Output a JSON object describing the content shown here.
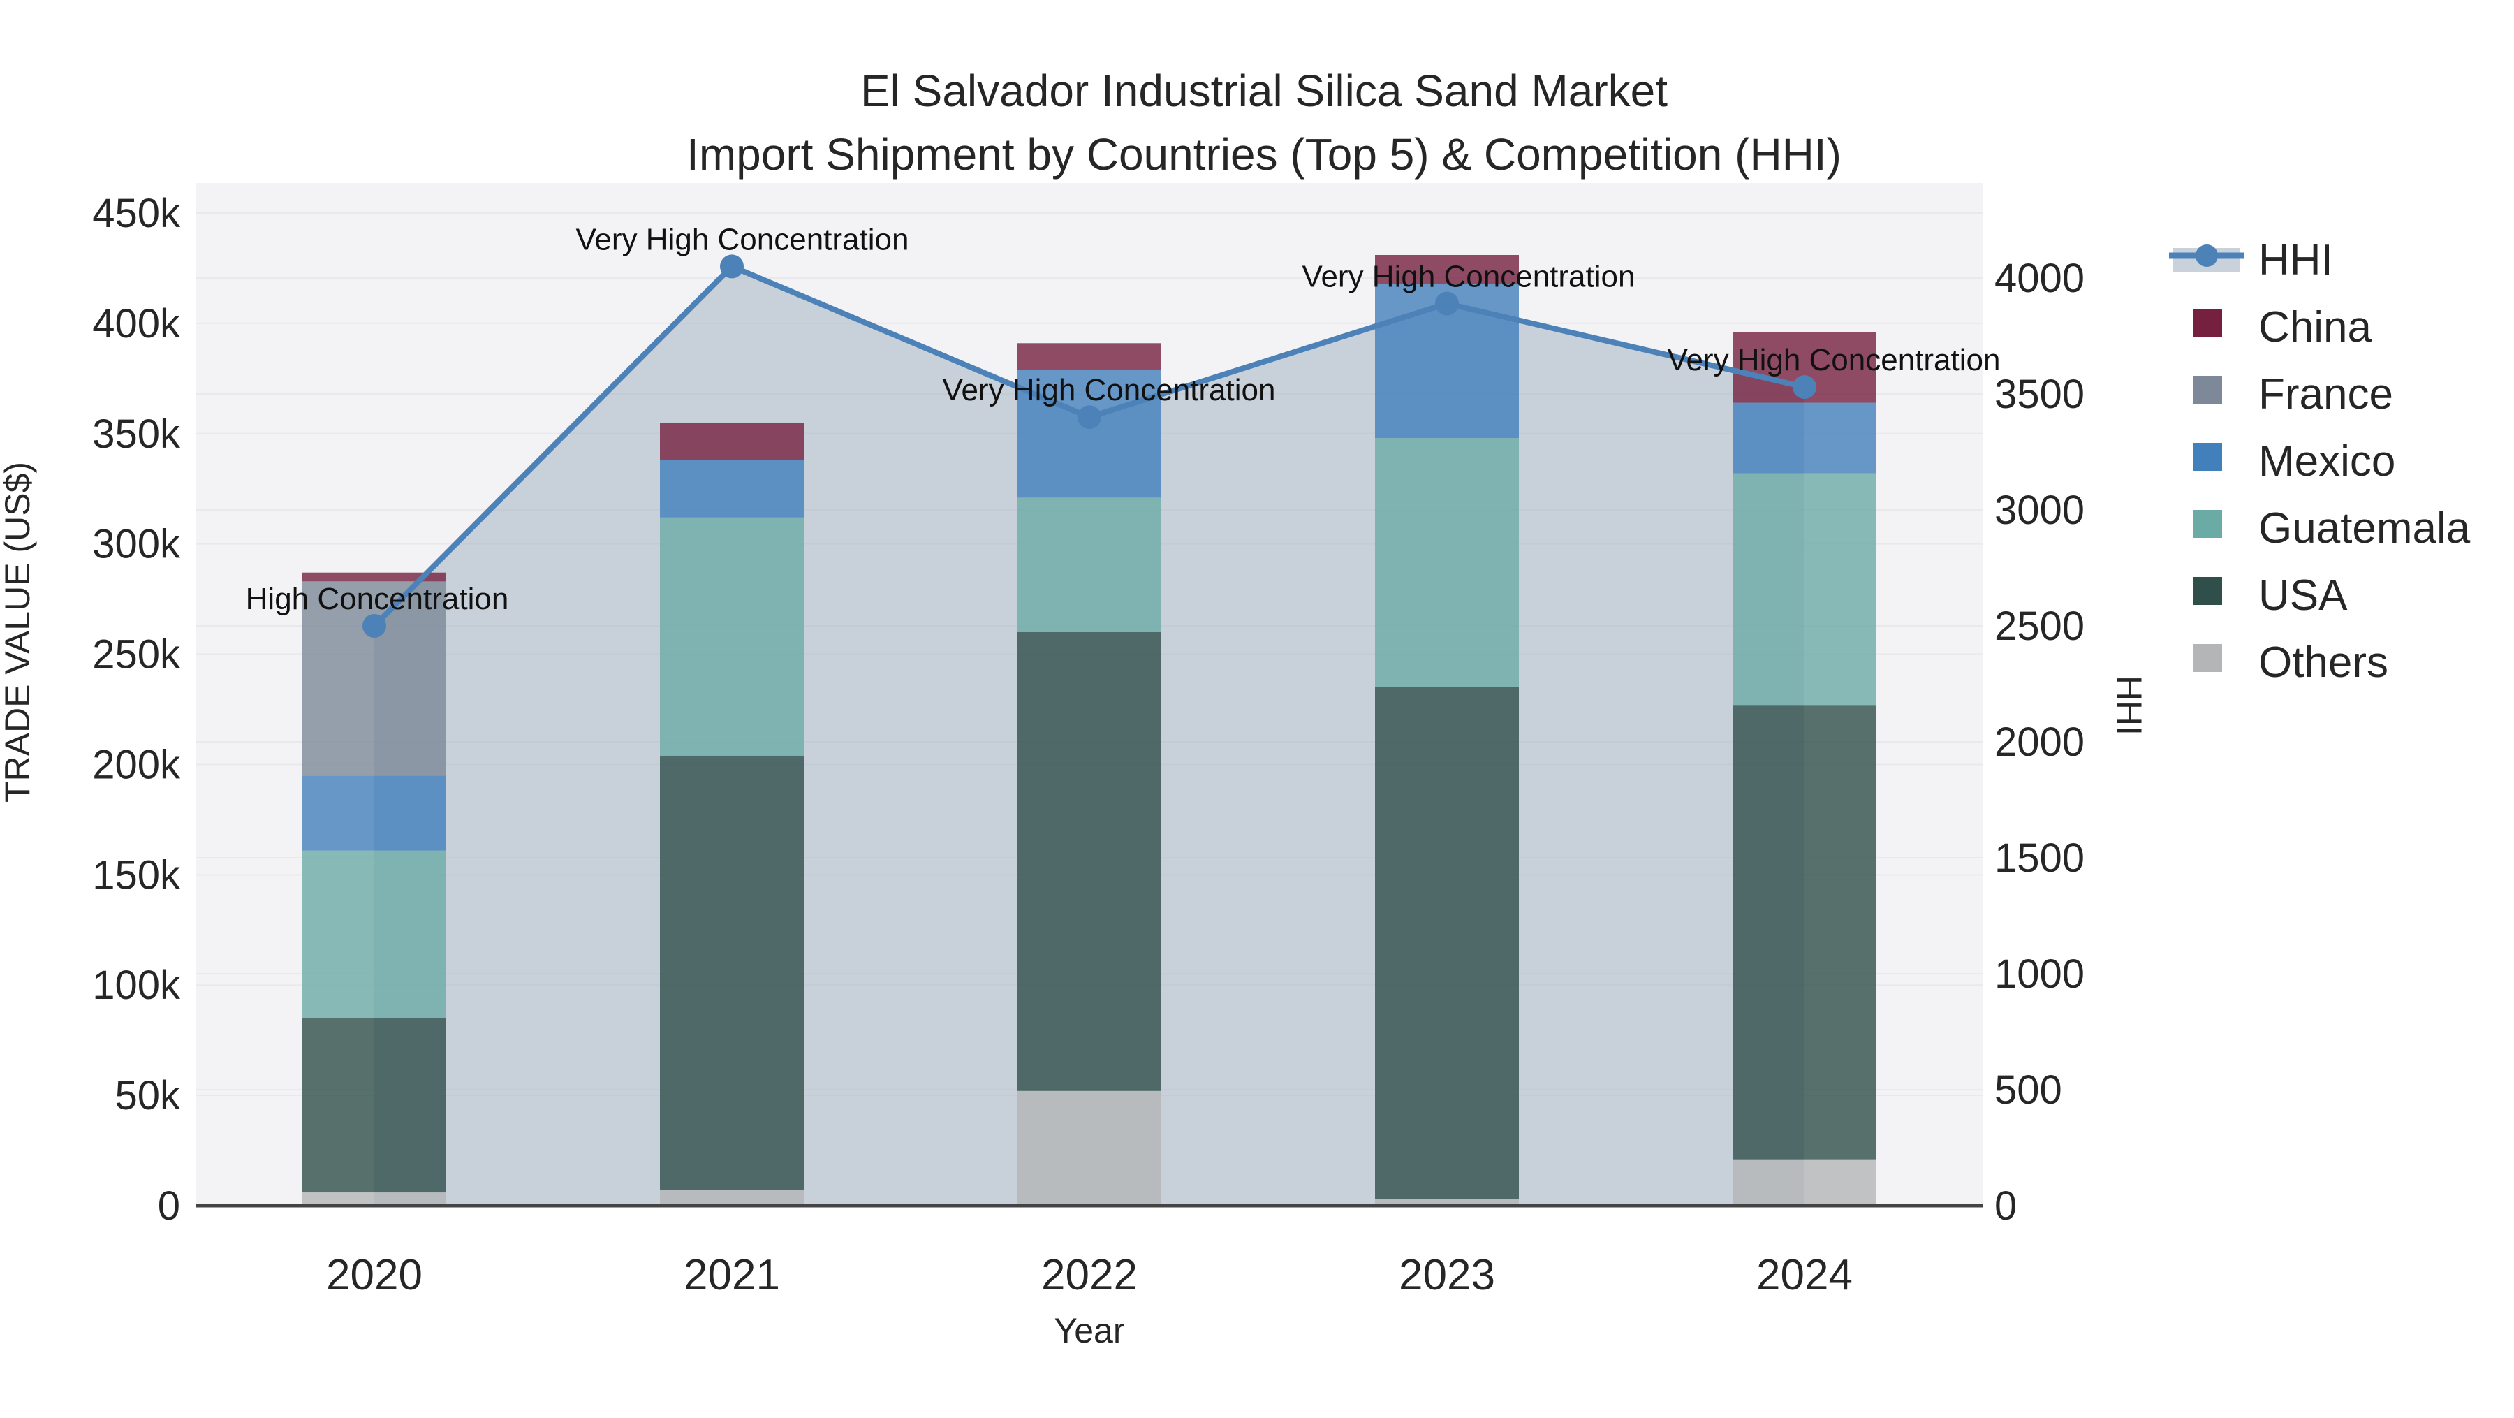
{
  "title": {
    "line1": "El Salvador Industrial Silica Sand Market",
    "line2": "Import Shipment by Countries (Top 5) & Competition (HHI)"
  },
  "axes": {
    "x_title": "Year",
    "y_left_title": "TRADE VALUE (US$)",
    "y_right_title": "HHI",
    "y_left_tick_labels": [
      "0",
      "50k",
      "100k",
      "150k",
      "200k",
      "250k",
      "300k",
      "350k",
      "400k",
      "450k"
    ],
    "y_right_tick_labels": [
      "0",
      "500",
      "1000",
      "1500",
      "2000",
      "2500",
      "3000",
      "3500",
      "4000"
    ],
    "x_tick_labels": [
      "2020",
      "2021",
      "2022",
      "2023",
      "2024"
    ]
  },
  "legend": {
    "items": [
      {
        "label": "HHI",
        "type": "line",
        "color": "#4d82b8",
        "band_color": "#c9d1da"
      },
      {
        "label": "China",
        "type": "swatch",
        "color": "#75203f"
      },
      {
        "label": "France",
        "type": "swatch",
        "color": "#7d8899"
      },
      {
        "label": "Mexico",
        "type": "swatch",
        "color": "#4280bb"
      },
      {
        "label": "Guatemala",
        "type": "swatch",
        "color": "#6baba6"
      },
      {
        "label": "USA",
        "type": "swatch",
        "color": "#2f4f4a"
      },
      {
        "label": "Others",
        "type": "swatch",
        "color": "#b3b5b7"
      }
    ]
  },
  "chart_data": {
    "type": "bar+line",
    "title": "El Salvador Industrial Silica Sand Market — Import Shipment by Countries (Top 5) & Competition (HHI)",
    "xlabel": "Year",
    "ylabel_left": "TRADE VALUE (US$)",
    "ylabel_right": "HHI",
    "categories": [
      "2020",
      "2021",
      "2022",
      "2023",
      "2024"
    ],
    "bar_value_unit": "US$",
    "bar_opacity": 0.8,
    "stack_order_bottom_to_top": [
      "Others",
      "USA",
      "Guatemala",
      "Mexico",
      "France",
      "China"
    ],
    "series": [
      {
        "name": "China",
        "color": "#75203f",
        "values": [
          4000,
          17000,
          12000,
          13000,
          32000
        ]
      },
      {
        "name": "France",
        "color": "#7d8899",
        "values": [
          88000,
          0,
          0,
          0,
          0
        ]
      },
      {
        "name": "Mexico",
        "color": "#4280bb",
        "values": [
          34000,
          26000,
          58000,
          70000,
          32000
        ]
      },
      {
        "name": "Guatemala",
        "color": "#6baba6",
        "values": [
          76000,
          108000,
          61000,
          113000,
          105000
        ]
      },
      {
        "name": "USA",
        "color": "#2f4f4a",
        "values": [
          79000,
          197000,
          208000,
          232000,
          206000
        ]
      },
      {
        "name": "Others",
        "color": "#b3b5b7",
        "values": [
          6000,
          7000,
          52000,
          3000,
          21000
        ]
      }
    ],
    "bar_totals": [
      287000,
      355000,
      391000,
      431000,
      396000
    ],
    "line_series": {
      "name": "HHI",
      "color": "#4d82b8",
      "area_fill": "rgba(164,178,194,0.55)",
      "values": [
        2500,
        4050,
        3400,
        3890,
        3530
      ]
    },
    "annotations": [
      {
        "x": "2020",
        "text": "High Concentration"
      },
      {
        "x": "2021",
        "text": "Very High Concentration"
      },
      {
        "x": "2022",
        "text": "Very High Concentration"
      },
      {
        "x": "2023",
        "text": "Very High Concentration"
      },
      {
        "x": "2024",
        "text": "Very High Concentration"
      }
    ],
    "ylim_left": [
      0,
      463000
    ],
    "ylim_right": [
      0,
      4400
    ],
    "y_left_ticks": [
      0,
      50000,
      100000,
      150000,
      200000,
      250000,
      300000,
      350000,
      400000,
      450000
    ],
    "y_right_ticks": [
      0,
      500,
      1000,
      1500,
      2000,
      2500,
      3000,
      3500,
      4000
    ],
    "grid": true,
    "legend_position": "right"
  },
  "colors": {
    "figure_bg": "#ffffff",
    "plot_bg": "#f3f3f5",
    "gridline": "#e9e9ec",
    "axis_line": "#444444",
    "text": "#262626"
  }
}
